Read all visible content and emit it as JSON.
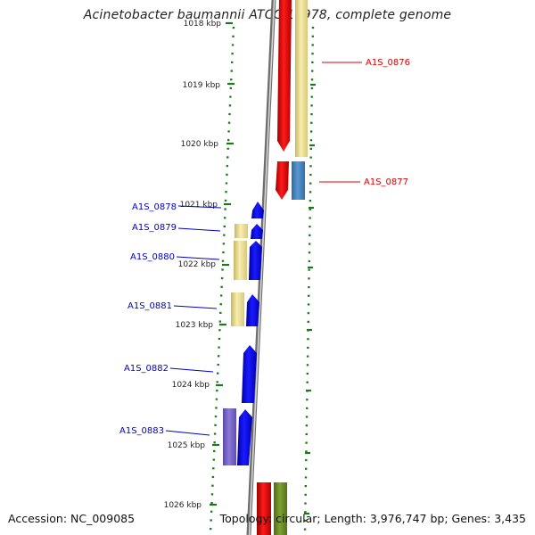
{
  "header": {
    "title": "Acinetobacter baumannii ATCC 17978, complete genome"
  },
  "footer": {
    "accession": "Accession: NC_009085",
    "summary": "Topology: circular; Length: 3,976,747 bp; Genes: 3,435"
  },
  "scale": {
    "tick_labels": [
      "1018 kbp",
      "1019 kbp",
      "1020 kbp",
      "1021 kbp",
      "1022 kbp",
      "1023 kbp",
      "1024 kbp",
      "1025 kbp",
      "1026 kbp"
    ]
  },
  "genes": {
    "forward": [
      {
        "id": "A1S_0876"
      },
      {
        "id": "A1S_0877"
      }
    ],
    "reverse": [
      {
        "id": "A1S_0878"
      },
      {
        "id": "A1S_0879"
      },
      {
        "id": "A1S_0880"
      },
      {
        "id": "A1S_0881"
      },
      {
        "id": "A1S_0882"
      },
      {
        "id": "A1S_0883"
      }
    ]
  },
  "colors": {
    "forward_cds": "#ff0000",
    "reverse_cds": "#0000ff",
    "rna_track": "#f0e6a0",
    "blue_track": "#4a86c0",
    "purple_track": "#7b68c8",
    "olive_track": "#6b8e23",
    "forward_label": "#dd0000",
    "reverse_label": "#0000cc",
    "tick": "#1a7a1a",
    "backbone": "#8a8a8a"
  }
}
